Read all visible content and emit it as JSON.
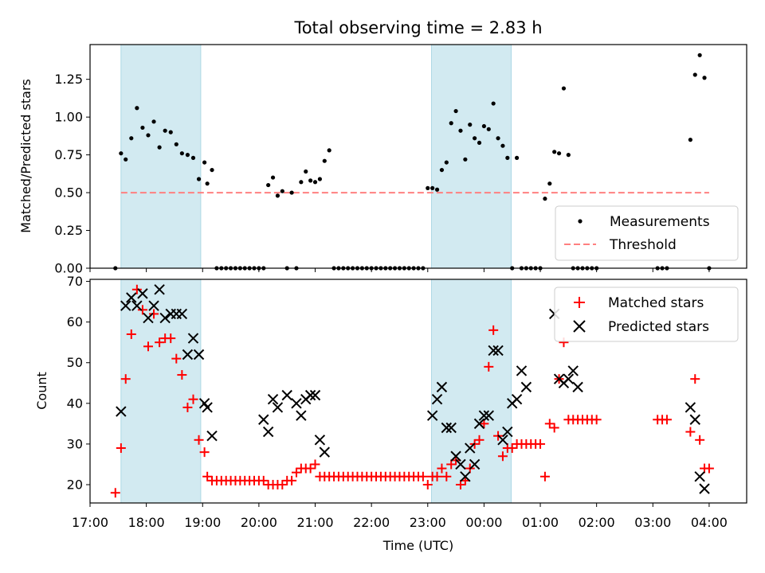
{
  "title": "Total observing time = 2.83 h",
  "colors": {
    "measurement": "#000000",
    "threshold": "#ff8080",
    "matched": "#ff0000",
    "predicted": "#000000",
    "span": "#add8e6"
  },
  "chart_data": [
    {
      "type": "scatter",
      "ylabel": "Matched/Predicted stars",
      "ylim": [
        0,
        1.48
      ],
      "y_ticks": [
        "0.00",
        "0.25",
        "0.50",
        "0.75",
        "1.00",
        "1.25"
      ],
      "legend": {
        "position": "lower-right",
        "entries": [
          "Measurements",
          "Threshold"
        ]
      },
      "series": [
        {
          "name": "Measurements",
          "x": [
            "17:27",
            "17:33",
            "17:38",
            "17:44",
            "17:50",
            "17:56",
            "18:02",
            "18:08",
            "18:14",
            "18:20",
            "18:26",
            "18:32",
            "18:38",
            "18:44",
            "18:50",
            "18:56",
            "19:02",
            "19:05",
            "19:10",
            "19:15",
            "19:20",
            "19:25",
            "19:30",
            "19:35",
            "19:40",
            "19:45",
            "19:50",
            "19:55",
            "20:00",
            "20:05",
            "20:10",
            "20:15",
            "20:20",
            "20:25",
            "20:30",
            "20:35",
            "20:40",
            "20:45",
            "20:50",
            "20:55",
            "21:00",
            "21:05",
            "21:10",
            "21:15",
            "21:20",
            "21:25",
            "21:30",
            "21:35",
            "21:40",
            "21:45",
            "21:50",
            "21:55",
            "22:00",
            "22:05",
            "22:10",
            "22:15",
            "22:20",
            "22:25",
            "22:30",
            "22:35",
            "22:40",
            "22:45",
            "22:50",
            "22:55",
            "23:00",
            "23:05",
            "23:10",
            "23:15",
            "23:20",
            "23:25",
            "23:30",
            "23:35",
            "23:40",
            "23:45",
            "23:50",
            "23:55",
            "00:00",
            "00:05",
            "00:10",
            "00:15",
            "00:20",
            "00:25",
            "00:30",
            "00:35",
            "00:40",
            "00:45",
            "00:50",
            "00:55",
            "01:00",
            "01:05",
            "01:10",
            "01:15",
            "01:20",
            "01:25",
            "01:30",
            "01:35",
            "01:40",
            "01:45",
            "01:50",
            "01:55",
            "02:00",
            "03:05",
            "03:10",
            "03:15",
            "03:40",
            "03:45",
            "03:50",
            "03:55",
            "04:00"
          ],
          "y": [
            0.0,
            0.76,
            0.72,
            0.86,
            1.06,
            0.93,
            0.88,
            0.97,
            0.8,
            0.91,
            0.9,
            0.82,
            0.76,
            0.75,
            0.73,
            0.59,
            0.7,
            0.56,
            0.65,
            0.0,
            0.0,
            0.0,
            0.0,
            0.0,
            0.0,
            0.0,
            0.0,
            0.0,
            0.0,
            0.0,
            0.55,
            0.6,
            0.48,
            0.51,
            0.0,
            0.5,
            0.0,
            0.57,
            0.64,
            0.58,
            0.57,
            0.59,
            0.71,
            0.78,
            0.0,
            0.0,
            0.0,
            0.0,
            0.0,
            0.0,
            0.0,
            0.0,
            0.0,
            0.0,
            0.0,
            0.0,
            0.0,
            0.0,
            0.0,
            0.0,
            0.0,
            0.0,
            0.0,
            0.0,
            0.53,
            0.53,
            0.52,
            0.65,
            0.7,
            0.96,
            1.04,
            0.91,
            0.72,
            0.95,
            0.86,
            0.83,
            0.94,
            0.92,
            1.09,
            0.86,
            0.81,
            0.73,
            0.0,
            0.73,
            0.0,
            0.0,
            0.0,
            0.0,
            0.0,
            0.46,
            0.56,
            0.77,
            0.76,
            1.19,
            0.75,
            0.0,
            0.0,
            0.0,
            0.0,
            0.0,
            0.0,
            0.0,
            0.0,
            0.0,
            0.85,
            1.28,
            1.41,
            1.26,
            0.0
          ]
        },
        {
          "name": "Threshold",
          "x": [
            "17:33",
            "04:00"
          ],
          "y": [
            0.5,
            0.5
          ]
        }
      ]
    },
    {
      "type": "scatter",
      "xlabel": "Time (UTC)",
      "ylabel": "Count",
      "ylim": [
        15.5,
        70.5
      ],
      "y_ticks": [
        "20",
        "30",
        "40",
        "50",
        "60",
        "70"
      ],
      "x_ticks": [
        "17:00",
        "18:00",
        "19:00",
        "20:00",
        "21:00",
        "22:00",
        "23:00",
        "00:00",
        "01:00",
        "02:00",
        "03:00",
        "04:00"
      ],
      "legend": {
        "position": "upper-right",
        "entries": [
          "Matched stars",
          "Predicted stars"
        ]
      },
      "series": [
        {
          "name": "Matched stars",
          "x": [
            "17:27",
            "17:33",
            "17:38",
            "17:44",
            "17:50",
            "17:56",
            "18:02",
            "18:08",
            "18:14",
            "18:20",
            "18:26",
            "18:32",
            "18:38",
            "18:44",
            "18:50",
            "18:56",
            "19:02",
            "19:05",
            "19:10",
            "19:15",
            "19:20",
            "19:25",
            "19:30",
            "19:35",
            "19:40",
            "19:45",
            "19:50",
            "19:55",
            "20:00",
            "20:05",
            "20:10",
            "20:15",
            "20:20",
            "20:25",
            "20:30",
            "20:35",
            "20:40",
            "20:45",
            "20:50",
            "20:55",
            "21:00",
            "21:05",
            "21:10",
            "21:15",
            "21:20",
            "21:25",
            "21:30",
            "21:35",
            "21:40",
            "21:45",
            "21:50",
            "21:55",
            "22:00",
            "22:05",
            "22:10",
            "22:15",
            "22:20",
            "22:25",
            "22:30",
            "22:35",
            "22:40",
            "22:45",
            "22:50",
            "22:55",
            "23:00",
            "23:05",
            "23:10",
            "23:15",
            "23:20",
            "23:25",
            "23:30",
            "23:35",
            "23:40",
            "23:45",
            "23:50",
            "23:55",
            "00:00",
            "00:05",
            "00:10",
            "00:15",
            "00:20",
            "00:25",
            "00:30",
            "00:35",
            "00:40",
            "00:45",
            "00:50",
            "00:55",
            "01:00",
            "01:05",
            "01:10",
            "01:15",
            "01:20",
            "01:25",
            "01:30",
            "01:35",
            "01:40",
            "01:45",
            "01:50",
            "01:55",
            "02:00",
            "03:05",
            "03:10",
            "03:15",
            "03:40",
            "03:45",
            "03:50",
            "03:55",
            "04:00"
          ],
          "y": [
            18,
            29,
            46,
            57,
            68,
            63,
            54,
            62,
            55,
            56,
            56,
            51,
            47,
            39,
            41,
            31,
            28,
            22,
            21,
            21,
            21,
            21,
            21,
            21,
            21,
            21,
            21,
            21,
            21,
            21,
            20,
            20,
            20,
            20,
            21,
            21,
            23,
            24,
            24,
            24,
            25,
            22,
            22,
            22,
            22,
            22,
            22,
            22,
            22,
            22,
            22,
            22,
            22,
            22,
            22,
            22,
            22,
            22,
            22,
            22,
            22,
            22,
            22,
            22,
            20,
            22,
            22,
            24,
            22,
            25,
            26,
            20,
            21,
            24,
            30,
            31,
            35,
            49,
            58,
            32,
            27,
            29,
            29,
            30,
            30,
            30,
            30,
            30,
            30,
            22,
            35,
            34,
            46,
            55,
            36,
            36,
            36,
            36,
            36,
            36,
            36,
            36,
            36,
            36,
            33,
            46,
            31,
            24,
            24
          ]
        },
        {
          "name": "Predicted stars",
          "x": [
            "17:33",
            "17:38",
            "17:44",
            "17:50",
            "17:56",
            "18:02",
            "18:08",
            "18:14",
            "18:20",
            "18:26",
            "18:32",
            "18:38",
            "18:44",
            "18:50",
            "18:56",
            "19:02",
            "19:05",
            "19:10",
            "20:05",
            "20:10",
            "20:15",
            "20:20",
            "20:30",
            "20:40",
            "20:45",
            "20:50",
            "20:55",
            "21:00",
            "21:05",
            "21:10",
            "23:05",
            "23:10",
            "23:15",
            "23:20",
            "23:25",
            "23:30",
            "23:35",
            "23:40",
            "23:45",
            "23:50",
            "23:55",
            "00:00",
            "00:05",
            "00:10",
            "00:15",
            "00:20",
            "00:25",
            "00:30",
            "00:35",
            "00:40",
            "00:45",
            "01:15",
            "01:20",
            "01:25",
            "01:30",
            "01:35",
            "01:40",
            "03:40",
            "03:45",
            "03:50",
            "03:55"
          ],
          "y": [
            38,
            64,
            66,
            64,
            67,
            61,
            64,
            68,
            61,
            62,
            62,
            62,
            52,
            56,
            52,
            40,
            39,
            32,
            36,
            33,
            41,
            39,
            42,
            40,
            37,
            41,
            42,
            42,
            31,
            28,
            37,
            41,
            44,
            34,
            34,
            27,
            25,
            22,
            29,
            25,
            35,
            37,
            37,
            53,
            53,
            31,
            33,
            40,
            41,
            48,
            44,
            62,
            46,
            45,
            46,
            48,
            44,
            39,
            36,
            22,
            19
          ]
        }
      ]
    }
  ]
}
